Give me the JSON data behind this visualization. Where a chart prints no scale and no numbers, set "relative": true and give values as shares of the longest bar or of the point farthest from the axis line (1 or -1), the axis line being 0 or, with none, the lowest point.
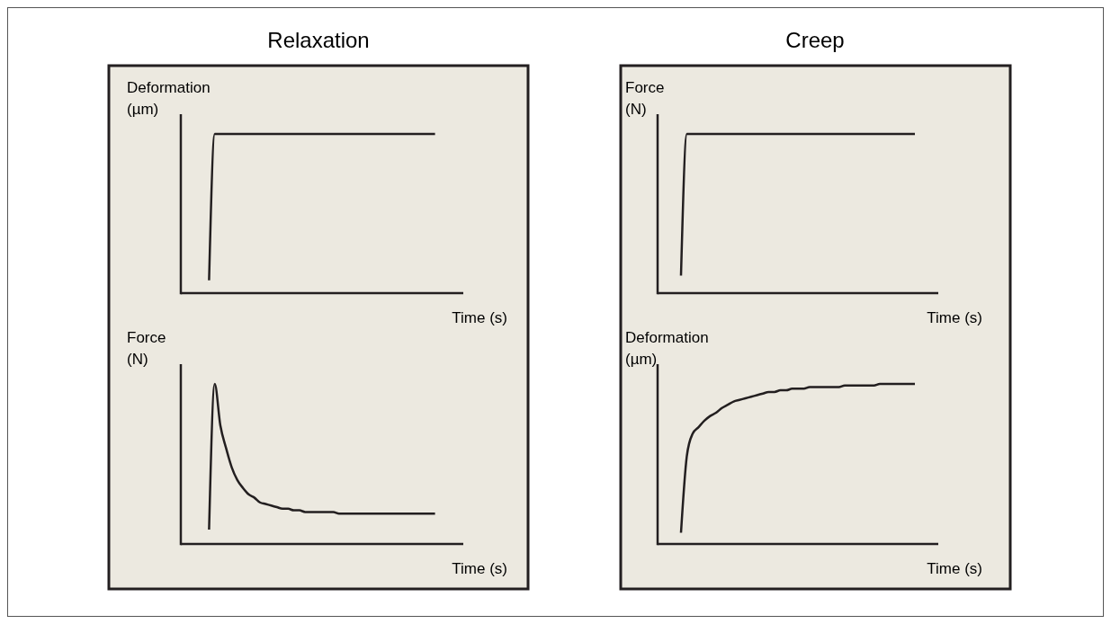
{
  "chart_data": [
    {
      "type": "line",
      "title": "Relaxation",
      "ylabel": "Deformation (µm)",
      "xlabel": "Time (s)",
      "relative": true,
      "categories": [
        null,
        null,
        null,
        null,
        null,
        null,
        null,
        null,
        null,
        null,
        null,
        null,
        null,
        null,
        null,
        null,
        null,
        null,
        null,
        null,
        null,
        null,
        null,
        null,
        null,
        null,
        null,
        null,
        null,
        null,
        null,
        null,
        null,
        null,
        null,
        null,
        null,
        null,
        null,
        null,
        null,
        null,
        null,
        null,
        null,
        null,
        null,
        null,
        null,
        null,
        null
      ],
      "series": [
        {
          "color": "#231f20",
          "values": [
            null,
            null,
            null,
            null,
            null,
            0.08,
            1,
            1,
            1,
            1,
            1,
            1,
            1,
            1,
            1,
            1,
            1,
            1,
            1,
            1,
            1,
            1,
            1,
            1,
            1,
            1,
            1,
            1,
            1,
            1,
            1,
            1,
            1,
            1,
            1,
            1,
            1,
            1,
            1,
            1,
            1,
            1,
            1,
            1,
            1,
            1,
            null,
            null,
            null,
            null,
            null
          ]
        }
      ]
    },
    {
      "type": "line",
      "ylabel": "Force (N)",
      "xlabel": "Time (s)",
      "relative": true,
      "categories": [
        null,
        null,
        null,
        null,
        null,
        null,
        null,
        null,
        null,
        null,
        null,
        null,
        null,
        null,
        null,
        null,
        null,
        null,
        null,
        null,
        null,
        null,
        null,
        null,
        null,
        null,
        null,
        null,
        null,
        null,
        null,
        null,
        null,
        null,
        null,
        null,
        null,
        null,
        null,
        null,
        null,
        null,
        null,
        null,
        null,
        null,
        null,
        null,
        null,
        null,
        null
      ],
      "series": [
        {
          "color": "#231f20",
          "values": [
            null,
            null,
            null,
            null,
            null,
            0.09,
            1,
            0.74,
            0.6,
            0.48,
            0.4,
            0.35,
            0.31,
            0.29,
            0.26,
            0.25,
            0.24,
            0.23,
            0.22,
            0.22,
            0.21,
            0.21,
            0.2,
            0.2,
            0.2,
            0.2,
            0.2,
            0.2,
            0.19,
            0.19,
            0.19,
            0.19,
            0.19,
            0.19,
            0.19,
            0.19,
            0.19,
            0.19,
            0.19,
            0.19,
            0.19,
            0.19,
            0.19,
            0.19,
            0.19,
            0.19,
            null,
            null,
            null,
            null,
            null
          ]
        }
      ]
    },
    {
      "type": "line",
      "title": "Creep",
      "ylabel": "Force (N)",
      "xlabel": "Time (s)",
      "relative": true,
      "categories": [
        null,
        null,
        null,
        null,
        null,
        null,
        null,
        null,
        null,
        null,
        null,
        null,
        null,
        null,
        null,
        null,
        null,
        null,
        null,
        null,
        null,
        null,
        null,
        null,
        null,
        null,
        null,
        null,
        null,
        null,
        null,
        null,
        null,
        null,
        null,
        null,
        null,
        null,
        null,
        null,
        null,
        null,
        null,
        null,
        null,
        null,
        null,
        null,
        null
      ],
      "series": [
        {
          "color": "#231f20",
          "values": [
            null,
            null,
            null,
            null,
            0.11,
            1,
            1,
            1,
            1,
            1,
            1,
            1,
            1,
            1,
            1,
            1,
            1,
            1,
            1,
            1,
            1,
            1,
            1,
            1,
            1,
            1,
            1,
            1,
            1,
            1,
            1,
            1,
            1,
            1,
            1,
            1,
            1,
            1,
            1,
            1,
            1,
            1,
            1,
            1,
            1,
            null,
            null,
            null,
            null
          ]
        }
      ]
    },
    {
      "type": "line",
      "ylabel": "Deformation (µm)",
      "xlabel": "Time (s)",
      "relative": true,
      "categories": [
        null,
        null,
        null,
        null,
        null,
        null,
        null,
        null,
        null,
        null,
        null,
        null,
        null,
        null,
        null,
        null,
        null,
        null,
        null,
        null,
        null,
        null,
        null,
        null,
        null,
        null,
        null,
        null,
        null,
        null,
        null,
        null,
        null,
        null,
        null,
        null,
        null,
        null,
        null,
        null,
        null,
        null,
        null,
        null,
        null,
        null,
        null,
        null,
        null
      ],
      "series": [
        {
          "color": "#231f20",
          "values": [
            null,
            null,
            null,
            null,
            0.07,
            0.55,
            0.69,
            0.73,
            0.77,
            0.8,
            0.82,
            0.85,
            0.87,
            0.89,
            0.9,
            0.91,
            0.92,
            0.93,
            0.94,
            0.95,
            0.95,
            0.96,
            0.96,
            0.97,
            0.97,
            0.97,
            0.98,
            0.98,
            0.98,
            0.98,
            0.98,
            0.98,
            0.99,
            0.99,
            0.99,
            0.99,
            0.99,
            0.99,
            1,
            1,
            1,
            1,
            1,
            1,
            1,
            null,
            null,
            null,
            null
          ]
        }
      ]
    }
  ]
}
